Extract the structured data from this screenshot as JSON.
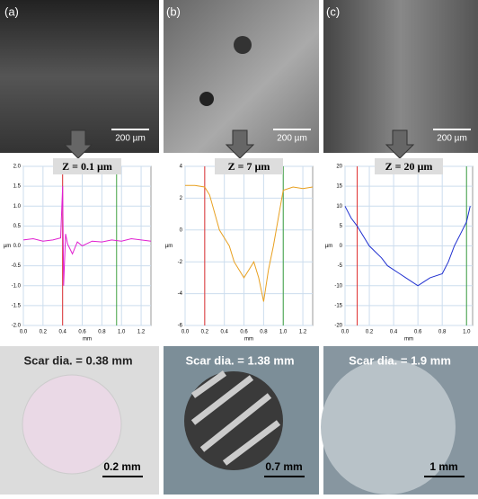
{
  "panels": [
    {
      "label": "(a)",
      "sem_scale": "200 µm",
      "scar": "Scar dia. = 0.38 mm",
      "photo_scale": "0.2 mm"
    },
    {
      "label": "(b)",
      "sem_scale": "200 µm",
      "scar": "Scar dia. = 1.38 mm",
      "photo_scale": "0.7 mm"
    },
    {
      "label": "(c)",
      "sem_scale": "200 µm",
      "scar": "Scar dia. = 1.9 mm",
      "photo_scale": "1 mm"
    }
  ],
  "chart_data": [
    {
      "type": "line",
      "annotation": "Z = 0.1 µm",
      "x_label": "mm",
      "y_label": "µm",
      "xlim": [
        0,
        1.3
      ],
      "ylim": [
        -2,
        2
      ],
      "xticks": [
        {
          "value": 0,
          "label": "0.0"
        },
        0.2,
        0.4,
        0.6,
        0.8,
        {
          "value": 1,
          "label": "1.0"
        },
        1.2
      ],
      "yticks": [
        {
          "value": 2,
          "label": "2.0"
        },
        1.5,
        {
          "value": 1,
          "label": "1.0"
        },
        0.5,
        {
          "value": 0,
          "label": "0.0"
        },
        -0.5,
        {
          "value": -1,
          "label": "-1.0"
        },
        -1.5,
        {
          "value": -2,
          "label": "-2.0"
        }
      ],
      "markers": [
        {
          "x": 0.4,
          "color": "#e03030"
        },
        {
          "x": 0.95,
          "color": "#40a040"
        }
      ],
      "series": [
        {
          "color": "#e020d0",
          "x": [
            0,
            0.1,
            0.2,
            0.3,
            0.38,
            0.4,
            0.41,
            0.43,
            0.45,
            0.5,
            0.55,
            0.6,
            0.7,
            0.8,
            0.9,
            1.0,
            1.1,
            1.2,
            1.3
          ],
          "values": [
            0.15,
            0.18,
            0.12,
            0.15,
            0.2,
            1.5,
            -1.0,
            0.3,
            0.05,
            -0.2,
            0.1,
            0.0,
            0.12,
            0.1,
            0.15,
            0.12,
            0.18,
            0.15,
            0.12
          ]
        }
      ]
    },
    {
      "type": "line",
      "annotation": "Z = 7 µm",
      "x_label": "mm",
      "y_label": "µm",
      "xlim": [
        0,
        1.3
      ],
      "ylim": [
        -6,
        4
      ],
      "xticks": [
        {
          "value": 0,
          "label": "0.0"
        },
        0.2,
        0.4,
        0.6,
        0.8,
        {
          "value": 1,
          "label": "1.0"
        },
        1.2
      ],
      "yticks": [
        4,
        2,
        0,
        -2,
        -4,
        -6
      ],
      "markers": [
        {
          "x": 0.2,
          "color": "#e03030"
        },
        {
          "x": 1.0,
          "color": "#40a040"
        }
      ],
      "series": [
        {
          "color": "#e8a020",
          "x": [
            0,
            0.1,
            0.2,
            0.25,
            0.35,
            0.45,
            0.5,
            0.6,
            0.65,
            0.7,
            0.75,
            0.8,
            0.85,
            0.9,
            1.0,
            1.1,
            1.2,
            1.3
          ],
          "values": [
            2.8,
            2.8,
            2.7,
            2.2,
            0,
            -1,
            -2,
            -3,
            -2.5,
            -2,
            -3,
            -4.5,
            -2.5,
            -1,
            2.5,
            2.7,
            2.6,
            2.7
          ]
        }
      ]
    },
    {
      "type": "line",
      "annotation": "Z = 20 µm",
      "x_label": "mm",
      "y_label": "µm",
      "xlim": [
        0,
        1.05
      ],
      "ylim": [
        -20,
        20
      ],
      "xticks": [
        {
          "value": 0,
          "label": "0.0"
        },
        0.2,
        0.4,
        0.6,
        0.8,
        {
          "value": 1,
          "label": "1.0"
        }
      ],
      "yticks": [
        20,
        15,
        10,
        5,
        0,
        -5,
        -10,
        -15,
        -20
      ],
      "markers": [
        {
          "x": 0.1,
          "color": "#e03030"
        },
        {
          "x": 1.0,
          "color": "#40a040"
        }
      ],
      "series": [
        {
          "color": "#2030d0",
          "x": [
            0,
            0.05,
            0.1,
            0.2,
            0.3,
            0.35,
            0.45,
            0.5,
            0.6,
            0.65,
            0.7,
            0.8,
            0.85,
            0.9,
            0.95,
            1.0,
            1.03
          ],
          "values": [
            10,
            7,
            5,
            0,
            -3,
            -5,
            -7,
            -8,
            -10,
            -9,
            -8,
            -7,
            -4,
            0,
            3,
            6,
            10
          ]
        }
      ]
    }
  ]
}
